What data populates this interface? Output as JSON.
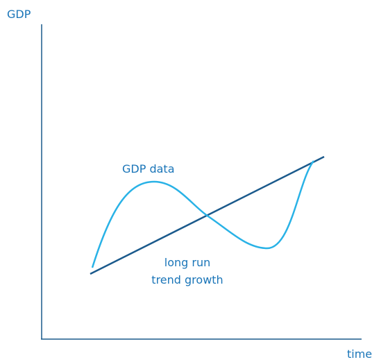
{
  "axes": {
    "y_label": "GDP",
    "x_label": "time"
  },
  "curve_label": "GDP data",
  "trend_label": [
    "long run",
    "trend growth"
  ]
}
